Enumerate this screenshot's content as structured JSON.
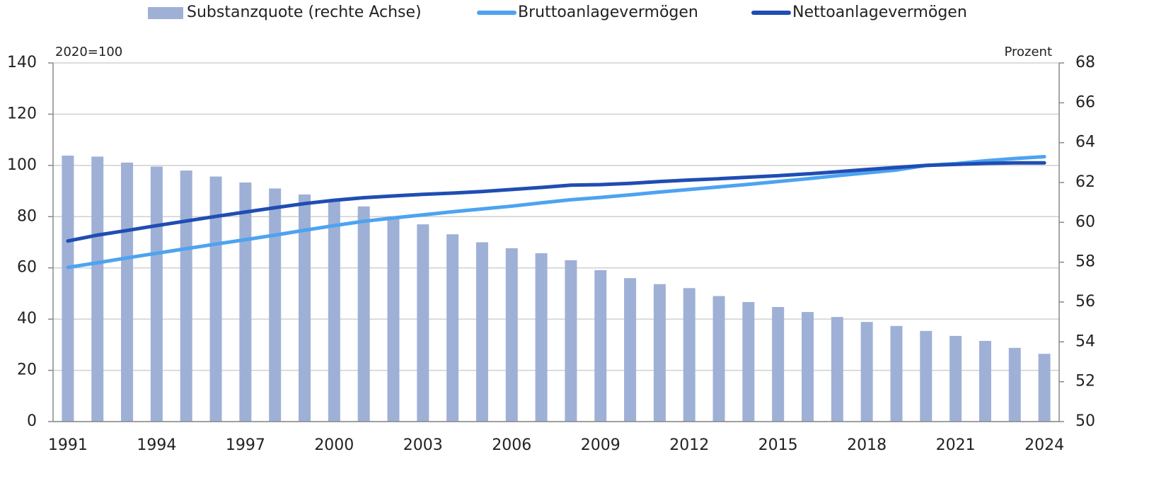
{
  "chart_data": {
    "type": "bar_line",
    "y_unit_label": "2020=100",
    "y2_unit_label": "Prozent",
    "categories": [
      "1991",
      null,
      null,
      "1994",
      null,
      null,
      "1997",
      null,
      null,
      "2000",
      null,
      null,
      "2003",
      null,
      null,
      "2006",
      null,
      null,
      "2009",
      null,
      null,
      "2012",
      null,
      null,
      "2015",
      null,
      null,
      "2018",
      null,
      null,
      "2021",
      null,
      null,
      "2024"
    ],
    "series": [
      {
        "name": "Substanzquote (rechte Achse)",
        "type": "bar",
        "axis": "y2",
        "color": "#9fb0d6",
        "values": [
          63.35,
          63.3,
          63.0,
          62.8,
          62.6,
          62.3,
          62.0,
          61.7,
          61.4,
          61.1,
          60.8,
          60.3,
          59.9,
          59.4,
          59.0,
          58.7,
          58.45,
          58.1,
          57.6,
          57.2,
          56.9,
          56.7,
          56.3,
          56.0,
          55.75,
          55.5,
          55.25,
          55.0,
          54.8,
          54.55,
          54.3,
          54.05,
          53.7,
          53.4
        ]
      },
      {
        "name": "Bruttoanlagevermögen",
        "type": "line",
        "color": "#4da3f0",
        "values": [
          60.2,
          62,
          63.9,
          65.7,
          67.5,
          69.3,
          71,
          72.8,
          74.7,
          76.5,
          78.2,
          79.5,
          80.7,
          81.9,
          83,
          84.1,
          85.4,
          86.6,
          87.5,
          88.5,
          89.6,
          90.6,
          91.6,
          92.6,
          93.7,
          94.8,
          96,
          97.1,
          98.2,
          100,
          100.7,
          101.8,
          102.7,
          103.4
        ]
      },
      {
        "name": "Nettoanlagevermögen",
        "type": "line",
        "color": "#1f4db3",
        "values": [
          70.5,
          72.8,
          74.6,
          76.5,
          78.3,
          80.1,
          81.8,
          83.5,
          85.1,
          86.4,
          87.4,
          88.1,
          88.7,
          89.2,
          89.8,
          90.6,
          91.4,
          92.3,
          92.5,
          93,
          93.7,
          94.3,
          94.8,
          95.4,
          96,
          96.7,
          97.5,
          98.4,
          99.2,
          100,
          100.4,
          100.8,
          101,
          101
        ]
      }
    ],
    "ylim": [
      0,
      140
    ],
    "yticks": [
      0,
      20,
      40,
      60,
      80,
      100,
      120,
      140
    ],
    "y2lim": [
      50,
      68
    ],
    "y2ticks": [
      50,
      52,
      54,
      56,
      58,
      60,
      62,
      64,
      66,
      68
    ],
    "grid": true,
    "legend": "top"
  }
}
